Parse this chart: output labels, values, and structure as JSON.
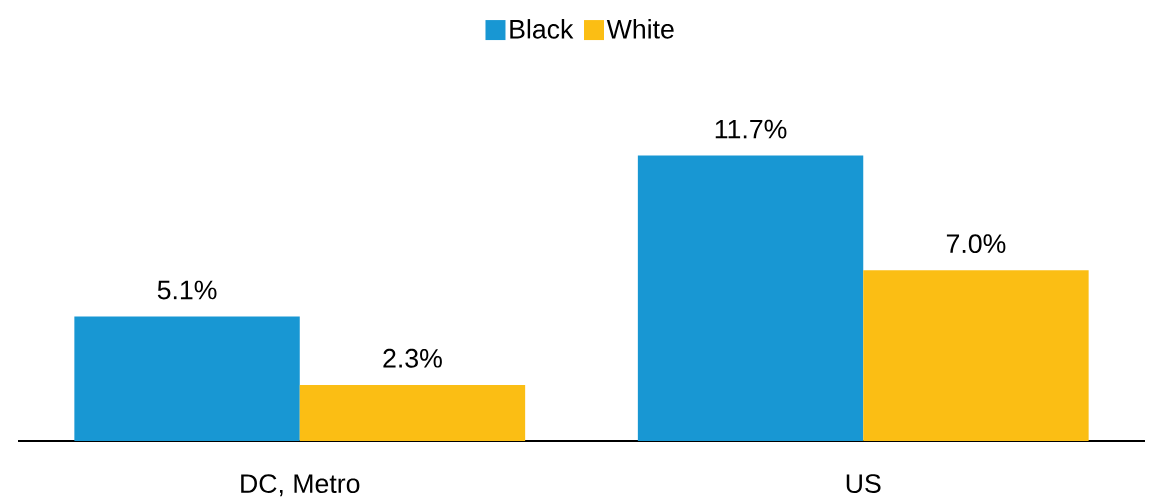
{
  "chart_data": {
    "type": "bar",
    "categories": [
      "DC, Metro",
      "US"
    ],
    "series": [
      {
        "name": "Black",
        "color": "#1897d3",
        "values": [
          5.1,
          11.7
        ],
        "value_labels": [
          "5.1%",
          "11.7%"
        ]
      },
      {
        "name": "White",
        "color": "#fbbe14",
        "values": [
          2.3,
          7.0
        ],
        "value_labels": [
          "2.3%",
          "7.0%"
        ]
      }
    ],
    "legend": "top"
  }
}
